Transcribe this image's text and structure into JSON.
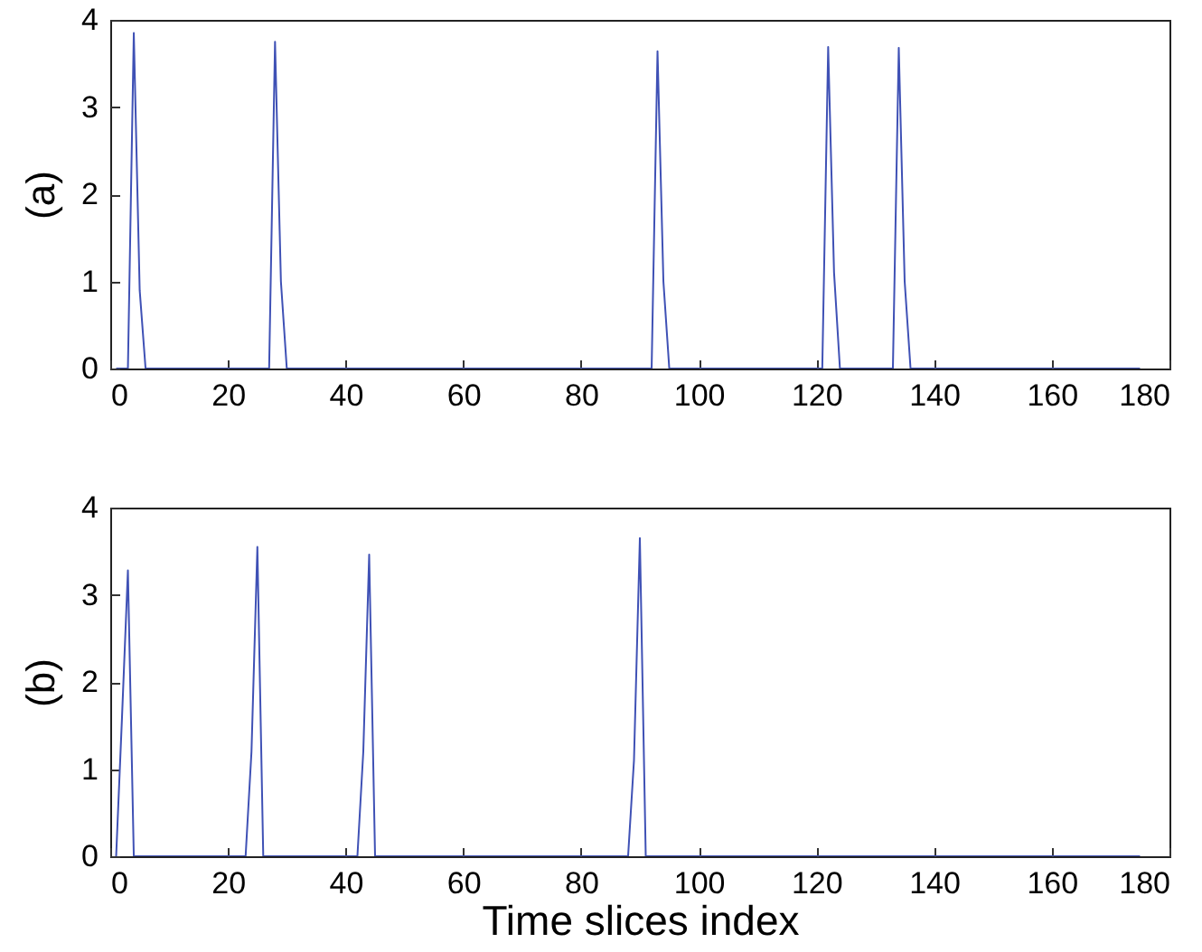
{
  "chart_data": [
    {
      "type": "line",
      "ylabel": "(a)",
      "xlim": [
        0,
        180
      ],
      "xticks": [
        0,
        20,
        40,
        60,
        80,
        100,
        120,
        140,
        160,
        180
      ],
      "ylim": [
        0,
        4
      ],
      "yticks": [
        0,
        1,
        2,
        3,
        4
      ],
      "series": [
        {
          "color": "#3f51b5",
          "x": [
            1,
            3,
            4,
            5,
            6,
            27,
            28,
            29,
            30,
            92,
            93,
            94,
            95,
            121,
            122,
            123,
            124,
            133,
            134,
            135,
            136,
            175
          ],
          "values": [
            0,
            0,
            3.85,
            0.9,
            0,
            0,
            3.75,
            1.0,
            0,
            0,
            3.64,
            1.0,
            0,
            0,
            3.69,
            1.1,
            0,
            0,
            3.68,
            1.0,
            0,
            0
          ]
        }
      ]
    },
    {
      "type": "line",
      "ylabel": "(b)",
      "xlabel": "Time slices index",
      "xlim": [
        0,
        180
      ],
      "xticks": [
        0,
        20,
        40,
        60,
        80,
        100,
        120,
        140,
        160,
        180
      ],
      "ylim": [
        0,
        4
      ],
      "yticks": [
        0,
        1,
        2,
        3,
        4
      ],
      "series": [
        {
          "color": "#3f51b5",
          "x": [
            1,
            2,
            3,
            4,
            23,
            24,
            25,
            26,
            42,
            43,
            44,
            45,
            88,
            89,
            90,
            91,
            175
          ],
          "values": [
            0,
            1.6,
            3.28,
            0,
            0,
            1.2,
            3.55,
            0,
            0,
            1.2,
            3.46,
            0,
            0,
            1.1,
            3.65,
            0,
            0
          ]
        }
      ]
    }
  ]
}
